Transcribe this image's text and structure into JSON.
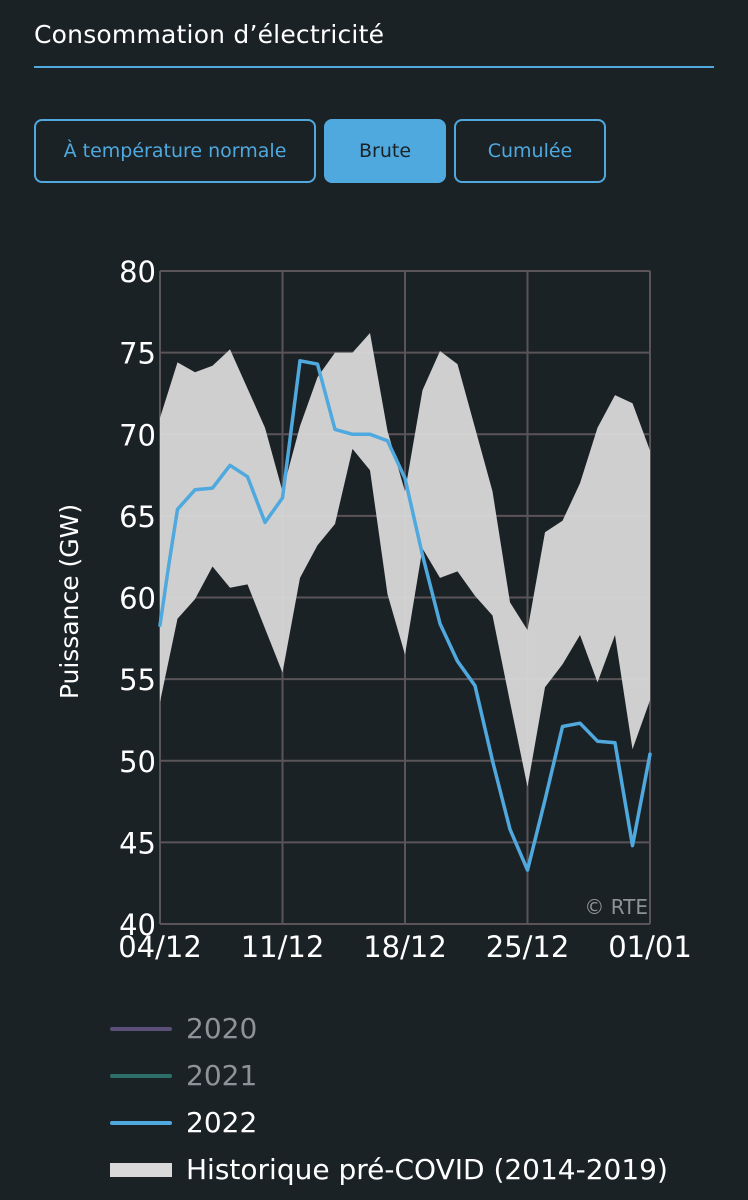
{
  "header": {
    "title": "Consommation d’électricité"
  },
  "tabs": [
    {
      "label": "À température normale",
      "active": false
    },
    {
      "label": "Brute",
      "active": true
    },
    {
      "label": "Cumulée",
      "active": false
    }
  ],
  "colors": {
    "accent": "#4fa9de",
    "background": "#1b2226",
    "band": "#d9d9d9",
    "grid": "#5a5458",
    "series_2020": "#5b4f7a",
    "series_2021": "#2f6f6a",
    "series_2022": "#4fa9de"
  },
  "legend": [
    {
      "label": "2020",
      "color": "#5b4f7a",
      "dim": true,
      "type": "line"
    },
    {
      "label": "2021",
      "color": "#2f6f6a",
      "dim": true,
      "type": "line"
    },
    {
      "label": "2022",
      "color": "#4fa9de",
      "dim": false,
      "type": "line"
    },
    {
      "label": "Historique pré-COVID (2014-2019)",
      "color": "#d9d9d9",
      "dim": false,
      "type": "band"
    }
  ],
  "chart_data": {
    "type": "line",
    "ylabel": "Puissance (GW)",
    "xlabel": "",
    "ylim": [
      40,
      80
    ],
    "yticks": [
      40,
      45,
      50,
      55,
      60,
      65,
      70,
      75,
      80
    ],
    "xlim": [
      0,
      28
    ],
    "xticks": [
      {
        "x": 0,
        "label": "04/12"
      },
      {
        "x": 7,
        "label": "11/12"
      },
      {
        "x": 14,
        "label": "18/12"
      },
      {
        "x": 21,
        "label": "25/12"
      },
      {
        "x": 28,
        "label": "01/01"
      }
    ],
    "watermark": "© RTE",
    "band": {
      "name": "Historique pré-COVID (2014-2019)",
      "x": [
        0,
        1,
        2,
        3,
        4,
        5,
        6,
        7,
        8,
        9,
        10,
        11,
        12,
        13,
        14,
        15,
        16,
        17,
        18,
        19,
        20,
        21,
        22,
        23,
        24,
        25,
        26,
        27,
        28
      ],
      "upper": [
        71.0,
        74.4,
        73.8,
        74.2,
        75.2,
        72.8,
        70.4,
        66.5,
        70.5,
        73.5,
        75.0,
        75.0,
        76.2,
        70.2,
        66.5,
        72.7,
        75.1,
        74.3,
        70.4,
        66.5,
        59.7,
        58.0,
        64.0,
        64.7,
        67.0,
        70.4,
        72.4,
        71.9,
        69.0
      ],
      "lower": [
        53.6,
        58.7,
        59.9,
        61.9,
        60.6,
        60.8,
        58.1,
        55.4,
        61.2,
        63.2,
        64.5,
        69.1,
        67.8,
        60.2,
        56.5,
        63.0,
        61.2,
        61.6,
        60.1,
        58.9,
        53.6,
        48.4,
        54.5,
        55.9,
        57.7,
        54.8,
        57.7,
        50.7,
        53.7
      ]
    },
    "series": [
      {
        "name": "2022",
        "x": [
          0,
          0.5,
          1,
          2,
          3,
          4,
          5,
          6,
          7,
          8,
          9,
          10,
          11,
          12,
          13,
          14,
          15,
          16,
          17,
          18,
          19,
          20,
          21,
          22,
          23,
          24,
          25,
          26,
          27,
          28
        ],
        "values": [
          58.3,
          62.0,
          65.4,
          66.6,
          66.7,
          68.1,
          67.4,
          64.6,
          66.1,
          74.5,
          74.3,
          70.3,
          70.0,
          70.0,
          69.6,
          67.3,
          62.6,
          58.4,
          56.1,
          54.6,
          50.0,
          45.8,
          43.3,
          47.6,
          52.1,
          52.3,
          51.2,
          51.1,
          44.8,
          50.4
        ]
      }
    ]
  }
}
